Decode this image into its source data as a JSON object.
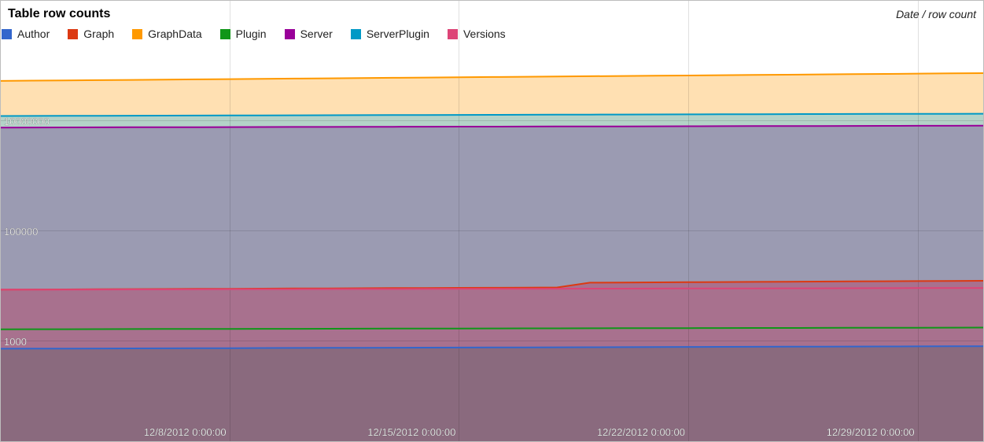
{
  "chart_data": {
    "type": "area",
    "title": "Table row counts",
    "axis_caption": "Date / row count",
    "y_scale": "log",
    "ylim": [
      100,
      20000000
    ],
    "y_ticks": [
      1000,
      100000,
      10000000
    ],
    "y_tick_labels": [
      "1000",
      "100000",
      "10000000"
    ],
    "x_dates": [
      "2012-12-01",
      "2012-12-02",
      "2012-12-03",
      "2012-12-04",
      "2012-12-05",
      "2012-12-06",
      "2012-12-07",
      "2012-12-08",
      "2012-12-09",
      "2012-12-10",
      "2012-12-11",
      "2012-12-12",
      "2012-12-13",
      "2012-12-14",
      "2012-12-15",
      "2012-12-16",
      "2012-12-17",
      "2012-12-18",
      "2012-12-19",
      "2012-12-20",
      "2012-12-21",
      "2012-12-22",
      "2012-12-23",
      "2012-12-24",
      "2012-12-25",
      "2012-12-26",
      "2012-12-27",
      "2012-12-28",
      "2012-12-29",
      "2012-12-30",
      "2012-12-31"
    ],
    "x_ticks": [
      "2012-12-08",
      "2012-12-15",
      "2012-12-22",
      "2012-12-29"
    ],
    "x_tick_labels": [
      "12/8/2012 0:00:00",
      "12/15/2012 0:00:00",
      "12/22/2012 0:00:00",
      "12/29/2012 0:00:00"
    ],
    "grid": true,
    "legend_position": "top-left",
    "series": [
      {
        "name": "GraphData",
        "color": "#ff9900",
        "fill": "#ffe0b2",
        "start": 52000000,
        "end": 72000000
      },
      {
        "name": "ServerPlugin",
        "color": "#0099c6",
        "fill": "#b4d3c8",
        "start": 12000000,
        "end": 13200000
      },
      {
        "name": "Server",
        "color": "#990099",
        "fill": "#9b9bb2",
        "start": 7400000,
        "end": 8000000
      },
      {
        "name": "Graph",
        "color": "#dc3912",
        "fill": "#a8718e",
        "start": 8400,
        "end": 12200,
        "jump_date": "2012-12-18",
        "jump_value": 9200,
        "after_jump_value": 11200
      },
      {
        "name": "Versions",
        "color": "#dd4477",
        "fill": "#a8718e",
        "start": 8400,
        "end": 9000
      },
      {
        "name": "Plugin",
        "color": "#109618",
        "fill": "#a8718e",
        "start": 1600,
        "end": 1720
      },
      {
        "name": "Author",
        "color": "#3366cc",
        "fill": "#8a6a7e",
        "start": 710,
        "end": 790
      }
    ],
    "legend_order": [
      "Author",
      "Graph",
      "GraphData",
      "Plugin",
      "Server",
      "ServerPlugin",
      "Versions"
    ]
  }
}
